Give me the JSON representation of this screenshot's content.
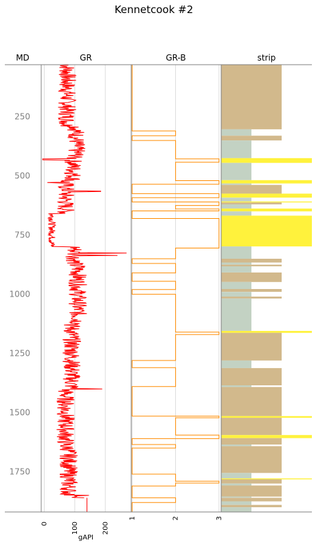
{
  "chart_data": {
    "type": "well-log",
    "title": "Kennetcook #2",
    "depth_track": {
      "header": "MD",
      "ylim": [
        1920,
        30
      ],
      "ticks": [
        250,
        500,
        750,
        1000,
        1250,
        1500,
        1750
      ]
    },
    "tracks": [
      {
        "header": "GR",
        "xlim": [
          -10,
          285
        ],
        "ticks": [
          0,
          100,
          200
        ],
        "unit": "gAPI",
        "color": "#ff0000",
        "grid": true,
        "baseline": [
          [
            1860,
            140
          ],
          [
            1920,
            140
          ]
        ]
      },
      {
        "header": "GR-B",
        "xlim": [
          0.98,
          3.05
        ],
        "ticks": [
          1,
          2,
          3
        ],
        "color": "#ff8c00",
        "grid": true,
        "blocks": [
          [
            30,
            1
          ],
          [
            310,
            2
          ],
          [
            330,
            1
          ],
          [
            350,
            2
          ],
          [
            428,
            3
          ],
          [
            442,
            2
          ],
          [
            520,
            3
          ],
          [
            535,
            1
          ],
          [
            575,
            3
          ],
          [
            592,
            1
          ],
          [
            610,
            3
          ],
          [
            625,
            2
          ],
          [
            640,
            3
          ],
          [
            648,
            1
          ],
          [
            680,
            3
          ],
          [
            805,
            2
          ],
          [
            850,
            1
          ],
          [
            870,
            2
          ],
          [
            910,
            1
          ],
          [
            945,
            2
          ],
          [
            980,
            1
          ],
          [
            1000,
            2
          ],
          [
            1160,
            3
          ],
          [
            1170,
            2
          ],
          [
            1280,
            1
          ],
          [
            1310,
            2
          ],
          [
            1390,
            1
          ],
          [
            1515,
            3
          ],
          [
            1522,
            2
          ],
          [
            1595,
            3
          ],
          [
            1610,
            1
          ],
          [
            1635,
            2
          ],
          [
            1650,
            1
          ],
          [
            1760,
            2
          ],
          [
            1790,
            3
          ],
          [
            1798,
            2
          ],
          [
            1810,
            1
          ],
          [
            1860,
            2
          ],
          [
            1880,
            1
          ],
          [
            1920,
            1
          ]
        ]
      },
      {
        "header": "strip",
        "colors": {
          "shale": "#c3d2c3",
          "sand": "#d2b98c",
          "coal": "#fff23c"
        },
        "intervals": [
          [
            "sand",
            30,
            303
          ],
          [
            "shale",
            303,
            330
          ],
          [
            "sand",
            330,
            350
          ],
          [
            "shale",
            350,
            425
          ],
          [
            "coal",
            425,
            445
          ],
          [
            "shale",
            445,
            518
          ],
          [
            "coal",
            518,
            532
          ],
          [
            "shale",
            532,
            538
          ],
          [
            "sand",
            538,
            575
          ],
          [
            "coal",
            575,
            592
          ],
          [
            "shale",
            592,
            608
          ],
          [
            "coal",
            608,
            612
          ],
          [
            "sand",
            612,
            620
          ],
          [
            "shale",
            620,
            638
          ],
          [
            "coal",
            638,
            650
          ],
          [
            "shale",
            650,
            668
          ],
          [
            "coal",
            668,
            798
          ],
          [
            "shale",
            798,
            850
          ],
          [
            "sand",
            850,
            866
          ],
          [
            "shale",
            866,
            875
          ],
          [
            "sand",
            875,
            882
          ],
          [
            "shale",
            882,
            908
          ],
          [
            "sand",
            908,
            948
          ],
          [
            "shale",
            948,
            978
          ],
          [
            "sand",
            978,
            990
          ],
          [
            "shale",
            990,
            1010
          ],
          [
            "sand",
            1010,
            1018
          ],
          [
            "shale",
            1018,
            1155
          ],
          [
            "coal",
            1155,
            1163
          ],
          [
            "sand",
            1163,
            1280
          ],
          [
            "shale",
            1280,
            1312
          ],
          [
            "sand",
            1312,
            1385
          ],
          [
            "shale",
            1385,
            1392
          ],
          [
            "sand",
            1392,
            1515
          ],
          [
            "coal",
            1515,
            1522
          ],
          [
            "sand",
            1522,
            1595
          ],
          [
            "coal",
            1595,
            1608
          ],
          [
            "sand",
            1608,
            1635
          ],
          [
            "shale",
            1635,
            1642
          ],
          [
            "sand",
            1642,
            1755
          ],
          [
            "shale",
            1755,
            1778
          ],
          [
            "coal",
            1778,
            1782
          ],
          [
            "sand",
            1782,
            1800
          ],
          [
            "shale",
            1800,
            1808
          ],
          [
            "sand",
            1808,
            1855
          ],
          [
            "shale",
            1855,
            1860
          ],
          [
            "sand",
            1860,
            1875
          ],
          [
            "shale",
            1875,
            1890
          ],
          [
            "sand",
            1890,
            1900
          ],
          [
            "shale",
            1900,
            1920
          ]
        ]
      }
    ]
  }
}
